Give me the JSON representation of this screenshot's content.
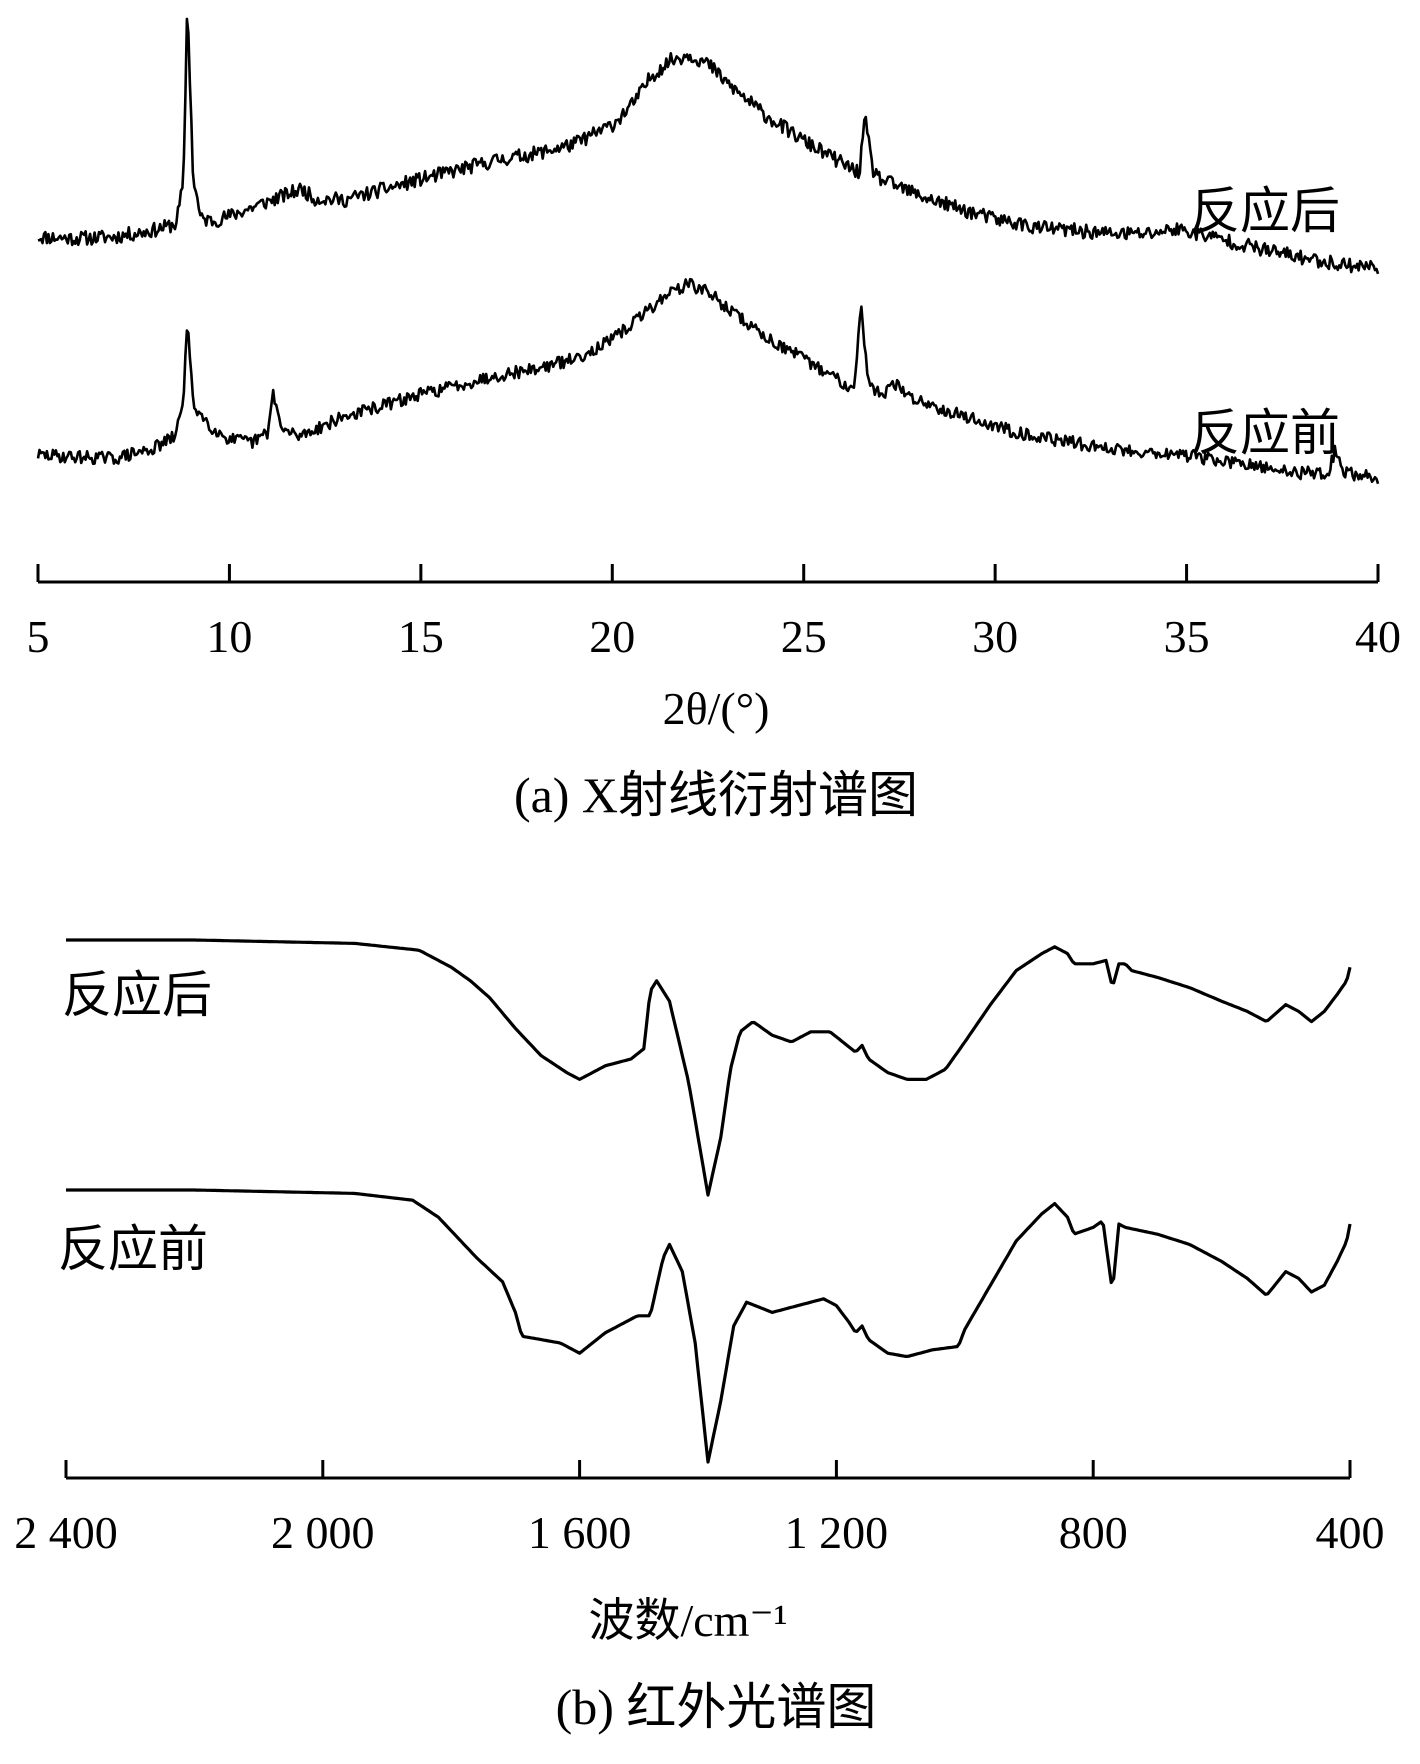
{
  "chart_data": [
    {
      "type": "line",
      "caption": "(a) X射线衍射谱图",
      "xlabel": "2θ/(°)",
      "ylabel": "",
      "xlim": [
        5,
        40
      ],
      "xticks": [
        5,
        10,
        15,
        20,
        25,
        30,
        35,
        40
      ],
      "tick_labels": [
        "5",
        "10",
        "15",
        "20",
        "25",
        "30",
        "35",
        "40"
      ],
      "grid": false,
      "legend": "none",
      "y_axis_shown": false,
      "series": [
        {
          "name": "反应后",
          "noise": 0.045,
          "seed": 11,
          "x": [
            5,
            6,
            7,
            8,
            8.6,
            8.8,
            8.9,
            9.05,
            9.25,
            9.6,
            10,
            11,
            11.9,
            12.2,
            13,
            15,
            17,
            18,
            19,
            20,
            20.5,
            20.8,
            21,
            21.5,
            22,
            22.5,
            23,
            24,
            25,
            26,
            26.45,
            26.6,
            26.8,
            27,
            28,
            29,
            30,
            30.7,
            31,
            32,
            33,
            34,
            34.7,
            35.3,
            36,
            37,
            38,
            39,
            40
          ],
          "y": [
            0.22,
            0.21,
            0.22,
            0.26,
            0.3,
            0.55,
            1.7,
            0.6,
            0.33,
            0.32,
            0.35,
            0.44,
            0.52,
            0.46,
            0.45,
            0.58,
            0.7,
            0.74,
            0.8,
            0.92,
            1.04,
            1.14,
            1.22,
            1.32,
            1.36,
            1.3,
            1.18,
            0.98,
            0.82,
            0.68,
            0.62,
            0.96,
            0.64,
            0.58,
            0.48,
            0.4,
            0.33,
            0.3,
            0.28,
            0.26,
            0.24,
            0.24,
            0.27,
            0.24,
            0.2,
            0.14,
            0.09,
            0.05,
            0.03
          ]
        },
        {
          "name": "反应前",
          "noise": 0.04,
          "seed": 29,
          "x": [
            5,
            6,
            7,
            8,
            8.6,
            8.8,
            8.9,
            9.05,
            9.3,
            9.6,
            10,
            10.6,
            11,
            11.15,
            11.35,
            11.8,
            13,
            15,
            17,
            18,
            19,
            20,
            20.5,
            21,
            21.5,
            22,
            22.5,
            23,
            24,
            25,
            26,
            26.3,
            26.5,
            26.7,
            27,
            27.4,
            27.8,
            29,
            30,
            31,
            32,
            33,
            34,
            35,
            36,
            37,
            38,
            38.7,
            38.9,
            39.1,
            40
          ],
          "y": [
            0.18,
            0.17,
            0.16,
            0.22,
            0.3,
            0.55,
            1.02,
            0.5,
            0.42,
            0.34,
            0.28,
            0.26,
            0.32,
            0.58,
            0.34,
            0.3,
            0.42,
            0.56,
            0.68,
            0.72,
            0.78,
            0.9,
            1.0,
            1.1,
            1.2,
            1.25,
            1.2,
            1.1,
            0.92,
            0.78,
            0.64,
            0.6,
            1.1,
            0.62,
            0.56,
            0.62,
            0.54,
            0.44,
            0.36,
            0.3,
            0.26,
            0.22,
            0.2,
            0.18,
            0.14,
            0.1,
            0.07,
            0.07,
            0.22,
            0.07,
            0.04
          ]
        }
      ]
    },
    {
      "type": "line",
      "caption": "(b) 红外光谱图",
      "xlabel": "波数/cm⁻¹",
      "ylabel": "",
      "xlim": [
        2400,
        400
      ],
      "x_reversed": true,
      "xticks": [
        2400,
        2000,
        1600,
        1200,
        800,
        400
      ],
      "tick_labels": [
        "2 400",
        "2 000",
        "1 600",
        "1 200",
        "800",
        "400"
      ],
      "grid": false,
      "legend": "none",
      "y_axis_shown": false,
      "series": [
        {
          "name": "反应后",
          "x": [
            2400,
            2200,
            1950,
            1850,
            1800,
            1770,
            1740,
            1700,
            1660,
            1620,
            1600,
            1560,
            1520,
            1500,
            1490,
            1480,
            1460,
            1430,
            1400,
            1380,
            1365,
            1350,
            1330,
            1300,
            1270,
            1240,
            1210,
            1190,
            1170,
            1160,
            1150,
            1120,
            1090,
            1060,
            1030,
            1000,
            960,
            920,
            880,
            860,
            840,
            830,
            800,
            780,
            770,
            760,
            750,
            740,
            700,
            650,
            600,
            560,
            530,
            500,
            480,
            460,
            440,
            420,
            405,
            400
          ],
          "y": [
            100,
            100,
            99,
            97,
            92,
            88,
            83,
            74,
            66,
            61,
            59,
            63,
            65,
            68,
            85,
            88,
            82,
            58,
            25,
            42,
            62,
            73,
            76,
            72,
            70,
            73,
            73,
            70,
            67,
            69,
            65,
            61,
            59,
            59,
            62,
            70,
            81,
            91,
            96,
            98,
            96,
            93,
            93,
            94,
            86,
            93,
            93,
            91,
            89,
            86,
            82,
            79,
            76,
            81,
            79,
            76,
            79,
            84,
            88,
            92
          ]
        },
        {
          "name": "反应前",
          "x": [
            2400,
            2200,
            1950,
            1860,
            1820,
            1790,
            1760,
            1720,
            1700,
            1690,
            1660,
            1630,
            1600,
            1560,
            1510,
            1490,
            1470,
            1460,
            1440,
            1420,
            1400,
            1380,
            1360,
            1340,
            1300,
            1260,
            1220,
            1200,
            1180,
            1170,
            1160,
            1150,
            1120,
            1090,
            1050,
            1010,
            1000,
            960,
            920,
            880,
            860,
            840,
            830,
            800,
            785,
            770,
            760,
            750,
            700,
            650,
            600,
            560,
            530,
            500,
            480,
            460,
            440,
            420,
            405,
            400
          ],
          "y": [
            100,
            100,
            99,
            97,
            92,
            86,
            80,
            73,
            64,
            57,
            56,
            55,
            52,
            58,
            63,
            63,
            80,
            84,
            76,
            55,
            20,
            38,
            60,
            67,
            64,
            66,
            68,
            66,
            61,
            58,
            60,
            56,
            52,
            51,
            53,
            54,
            59,
            72,
            85,
            93,
            96,
            92,
            87,
            89,
            91,
            70,
            90,
            89,
            87,
            84,
            79,
            74,
            69,
            76,
            74,
            70,
            72,
            79,
            85,
            90
          ]
        }
      ]
    }
  ]
}
